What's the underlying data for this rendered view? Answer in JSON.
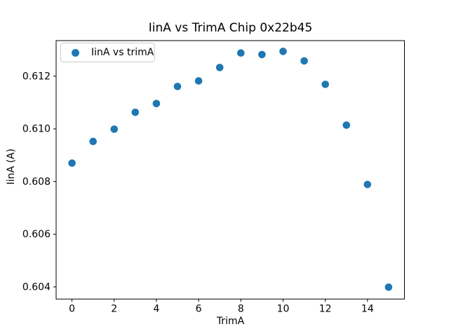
{
  "chart_data": {
    "type": "scatter",
    "title": "IinA vs TrimA Chip 0x22b45",
    "xlabel": "TrimA",
    "ylabel": "IinA (A)",
    "xlim": [
      -0.75,
      15.75
    ],
    "ylim": [
      0.60354,
      0.61335
    ],
    "grid": false,
    "xticks": [
      {
        "v": 0,
        "label": "0"
      },
      {
        "v": 2,
        "label": "2"
      },
      {
        "v": 4,
        "label": "4"
      },
      {
        "v": 6,
        "label": "6"
      },
      {
        "v": 8,
        "label": "8"
      },
      {
        "v": 10,
        "label": "10"
      },
      {
        "v": 12,
        "label": "12"
      },
      {
        "v": 14,
        "label": "14"
      }
    ],
    "yticks": [
      {
        "v": 0.604,
        "label": "0.604"
      },
      {
        "v": 0.606,
        "label": "0.606"
      },
      {
        "v": 0.608,
        "label": "0.608"
      },
      {
        "v": 0.61,
        "label": "0.610"
      },
      {
        "v": 0.612,
        "label": "0.612"
      }
    ],
    "series": [
      {
        "name": "IinA vs trimA",
        "marker": "circle",
        "color": "#1f77b4",
        "x": [
          0,
          1,
          2,
          3,
          4,
          5,
          6,
          7,
          8,
          9,
          10,
          11,
          12,
          13,
          14,
          15
        ],
        "y": [
          0.6087,
          0.60952,
          0.60999,
          0.61063,
          0.61096,
          0.61161,
          0.61182,
          0.61233,
          0.61288,
          0.61282,
          0.61294,
          0.61258,
          0.61169,
          0.61014,
          0.60789,
          0.60399
        ]
      }
    ],
    "legend": {
      "label": "IinA vs trimA",
      "position": "upper-left"
    },
    "colors": {
      "marker": "#1f77b4",
      "axes": "#000000",
      "background": "#ffffff",
      "legend_border": "#cccccc"
    }
  }
}
